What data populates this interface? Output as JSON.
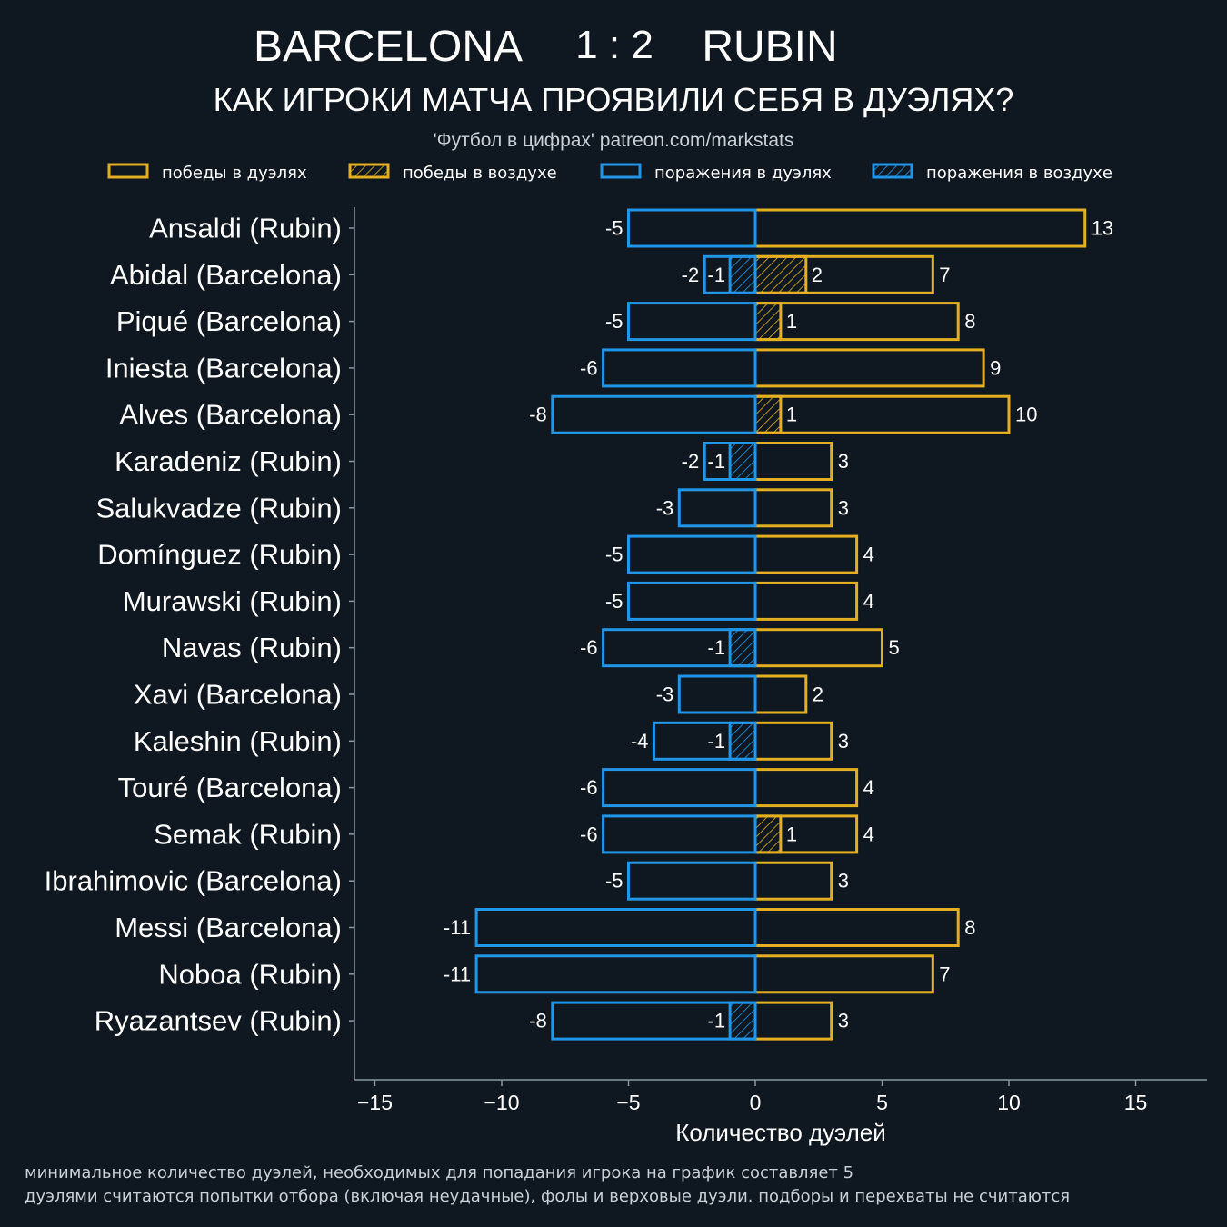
{
  "header": {
    "team_home": "BARCELONA",
    "score": "1 : 2",
    "team_away": "RUBIN",
    "subtitle": "КАК ИГРОКИ МАТЧА ПРОЯВИЛИ СЕБЯ В ДУЭЛЯХ?",
    "credit": "'Футбол в цифрах' patreon.com/markstats"
  },
  "legend": [
    {
      "label": "победы в дуэлях",
      "color": "#e4b021",
      "hatched": false
    },
    {
      "label": "победы в воздухе",
      "color": "#e4b021",
      "hatched": true
    },
    {
      "label": "поражения в дуэлях",
      "color": "#2196e8",
      "hatched": false
    },
    {
      "label": "поражения в воздухе",
      "color": "#2196e8",
      "hatched": true
    }
  ],
  "footnotes": [
    "минимальное количество дуэлей, необходимых для попадания игрока на график составляет 5",
    "дуэлями считаются попытки отбора (включая неудачные), фолы и верховые дуэли. подборы и перехваты не считаются"
  ],
  "colors": {
    "background": "#0f1820",
    "wins": "#e4b021",
    "losses": "#2196e8",
    "axis": "#8a9aa3",
    "text": "#ffffff"
  },
  "chart_data": {
    "type": "bar",
    "orientation": "horizontal",
    "xlabel": "Количество дуэлей",
    "xlim": [
      -15.5,
      18
    ],
    "xticks": [
      -15,
      -10,
      -5,
      0,
      5,
      10,
      15
    ],
    "xtick_labels": [
      "−15",
      "−10",
      "−5",
      "0",
      "5",
      "10",
      "15"
    ],
    "categories": [
      "Ansaldi (Rubin)",
      "Abidal (Barcelona)",
      "Piqué (Barcelona)",
      "Iniesta (Barcelona)",
      "Alves (Barcelona)",
      "Karadeniz (Rubin)",
      "Salukvadze (Rubin)",
      "Domínguez (Rubin)",
      "Murawski (Rubin)",
      "Navas (Rubin)",
      "Xavi (Barcelona)",
      "Kaleshin (Rubin)",
      "Touré (Barcelona)",
      "Semak (Rubin)",
      "Ibrahimovic (Barcelona)",
      "Messi (Barcelona)",
      "Noboa (Rubin)",
      "Ryazantsev (Rubin)"
    ],
    "series": [
      {
        "name": "победы в дуэлях",
        "values": [
          13,
          7,
          8,
          9,
          10,
          3,
          3,
          4,
          4,
          5,
          2,
          3,
          4,
          4,
          3,
          8,
          7,
          3
        ]
      },
      {
        "name": "победы в воздухе",
        "values": [
          0,
          2,
          1,
          0,
          1,
          0,
          0,
          0,
          0,
          0,
          0,
          0,
          0,
          1,
          0,
          0,
          0,
          0
        ]
      },
      {
        "name": "поражения в дуэлях",
        "values": [
          -5,
          -2,
          -5,
          -6,
          -8,
          -2,
          -3,
          -5,
          -5,
          -6,
          -3,
          -4,
          -6,
          -6,
          -5,
          -11,
          -11,
          -8
        ]
      },
      {
        "name": "поражения в воздухе",
        "values": [
          0,
          -1,
          0,
          0,
          0,
          -1,
          0,
          0,
          0,
          -1,
          0,
          -1,
          0,
          0,
          0,
          0,
          0,
          -1
        ]
      }
    ]
  }
}
